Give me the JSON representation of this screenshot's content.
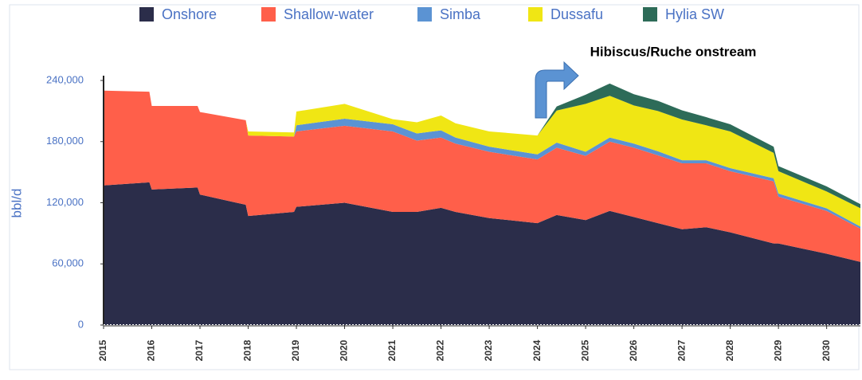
{
  "chart_data": {
    "type": "stacked_area",
    "ylabel": "bbl/d",
    "annotation": "Hibiscus/Ruche onstream",
    "x": [
      2015,
      2015.95,
      2016.0,
      2016.95,
      2017.0,
      2017.95,
      2018.0,
      2018.95,
      2019.0,
      2020.0,
      2021.0,
      2021.5,
      2022.0,
      2022.3,
      2023.0,
      2024.0,
      2024.4,
      2025.0,
      2025.5,
      2026.0,
      2026.5,
      2027.0,
      2027.5,
      2028.0,
      2028.9,
      2029.0,
      2030.0,
      2030.7
    ],
    "series": [
      {
        "name": "Onshore",
        "color": "#2b2d4a",
        "values": [
          137000,
          140000,
          133000,
          135000,
          128000,
          118000,
          107000,
          111000,
          116000,
          120000,
          111000,
          111000,
          115000,
          111000,
          105000,
          100000,
          108000,
          103000,
          112000,
          106000,
          100000,
          94000,
          96000,
          91000,
          80000,
          80000,
          70000,
          62000
        ]
      },
      {
        "name": "Shallow-water",
        "color": "#ff5f4a",
        "values": [
          93000,
          89000,
          82000,
          80000,
          81000,
          83000,
          79000,
          74000,
          74000,
          75500,
          79000,
          70000,
          69000,
          67000,
          65000,
          62500,
          66000,
          63000,
          68000,
          68000,
          66500,
          64700,
          62700,
          60000,
          61000,
          46000,
          42000,
          32600
        ]
      },
      {
        "name": "Simba",
        "color": "#5b93d3",
        "values": [
          0,
          0,
          0,
          0,
          0,
          0,
          0,
          0,
          6000,
          7000,
          7000,
          7000,
          7000,
          6000,
          5000,
          5000,
          5000,
          4000,
          4000,
          4000,
          4000,
          3000,
          3000,
          3000,
          3000,
          3000,
          2500,
          2000
        ]
      },
      {
        "name": "Dussafu",
        "color": "#f0e614",
        "values": [
          0,
          0,
          0,
          0,
          0,
          0,
          4000,
          4000,
          13500,
          14500,
          5000,
          11000,
          14600,
          14000,
          15000,
          18500,
          31500,
          47000,
          41000,
          37500,
          39500,
          40000,
          34300,
          36000,
          25000,
          22000,
          16500,
          18000
        ]
      },
      {
        "name": "Hylia SW",
        "color": "#2d6b58",
        "values": [
          0,
          0,
          0,
          0,
          0,
          0,
          0,
          0,
          0,
          0,
          0,
          0,
          0,
          0,
          0,
          0,
          4000,
          9000,
          12000,
          11000,
          10000,
          9000,
          8000,
          7000,
          6000,
          5000,
          5000,
          4000
        ]
      }
    ],
    "xlim": [
      2015,
      2030.7
    ],
    "xticks": [
      2015,
      2016,
      2017,
      2018,
      2019,
      2020,
      2021,
      2022,
      2023,
      2024,
      2025,
      2026,
      2027,
      2028,
      2029,
      2030
    ],
    "ylim": [
      0,
      240000
    ],
    "yticks": [
      0,
      {
        "value": 60000,
        "label": "60,000"
      },
      {
        "value": 120000,
        "label": "120,000"
      },
      {
        "value": 180000,
        "label": "180,000"
      },
      {
        "value": 240000,
        "label": "240,000"
      }
    ]
  }
}
